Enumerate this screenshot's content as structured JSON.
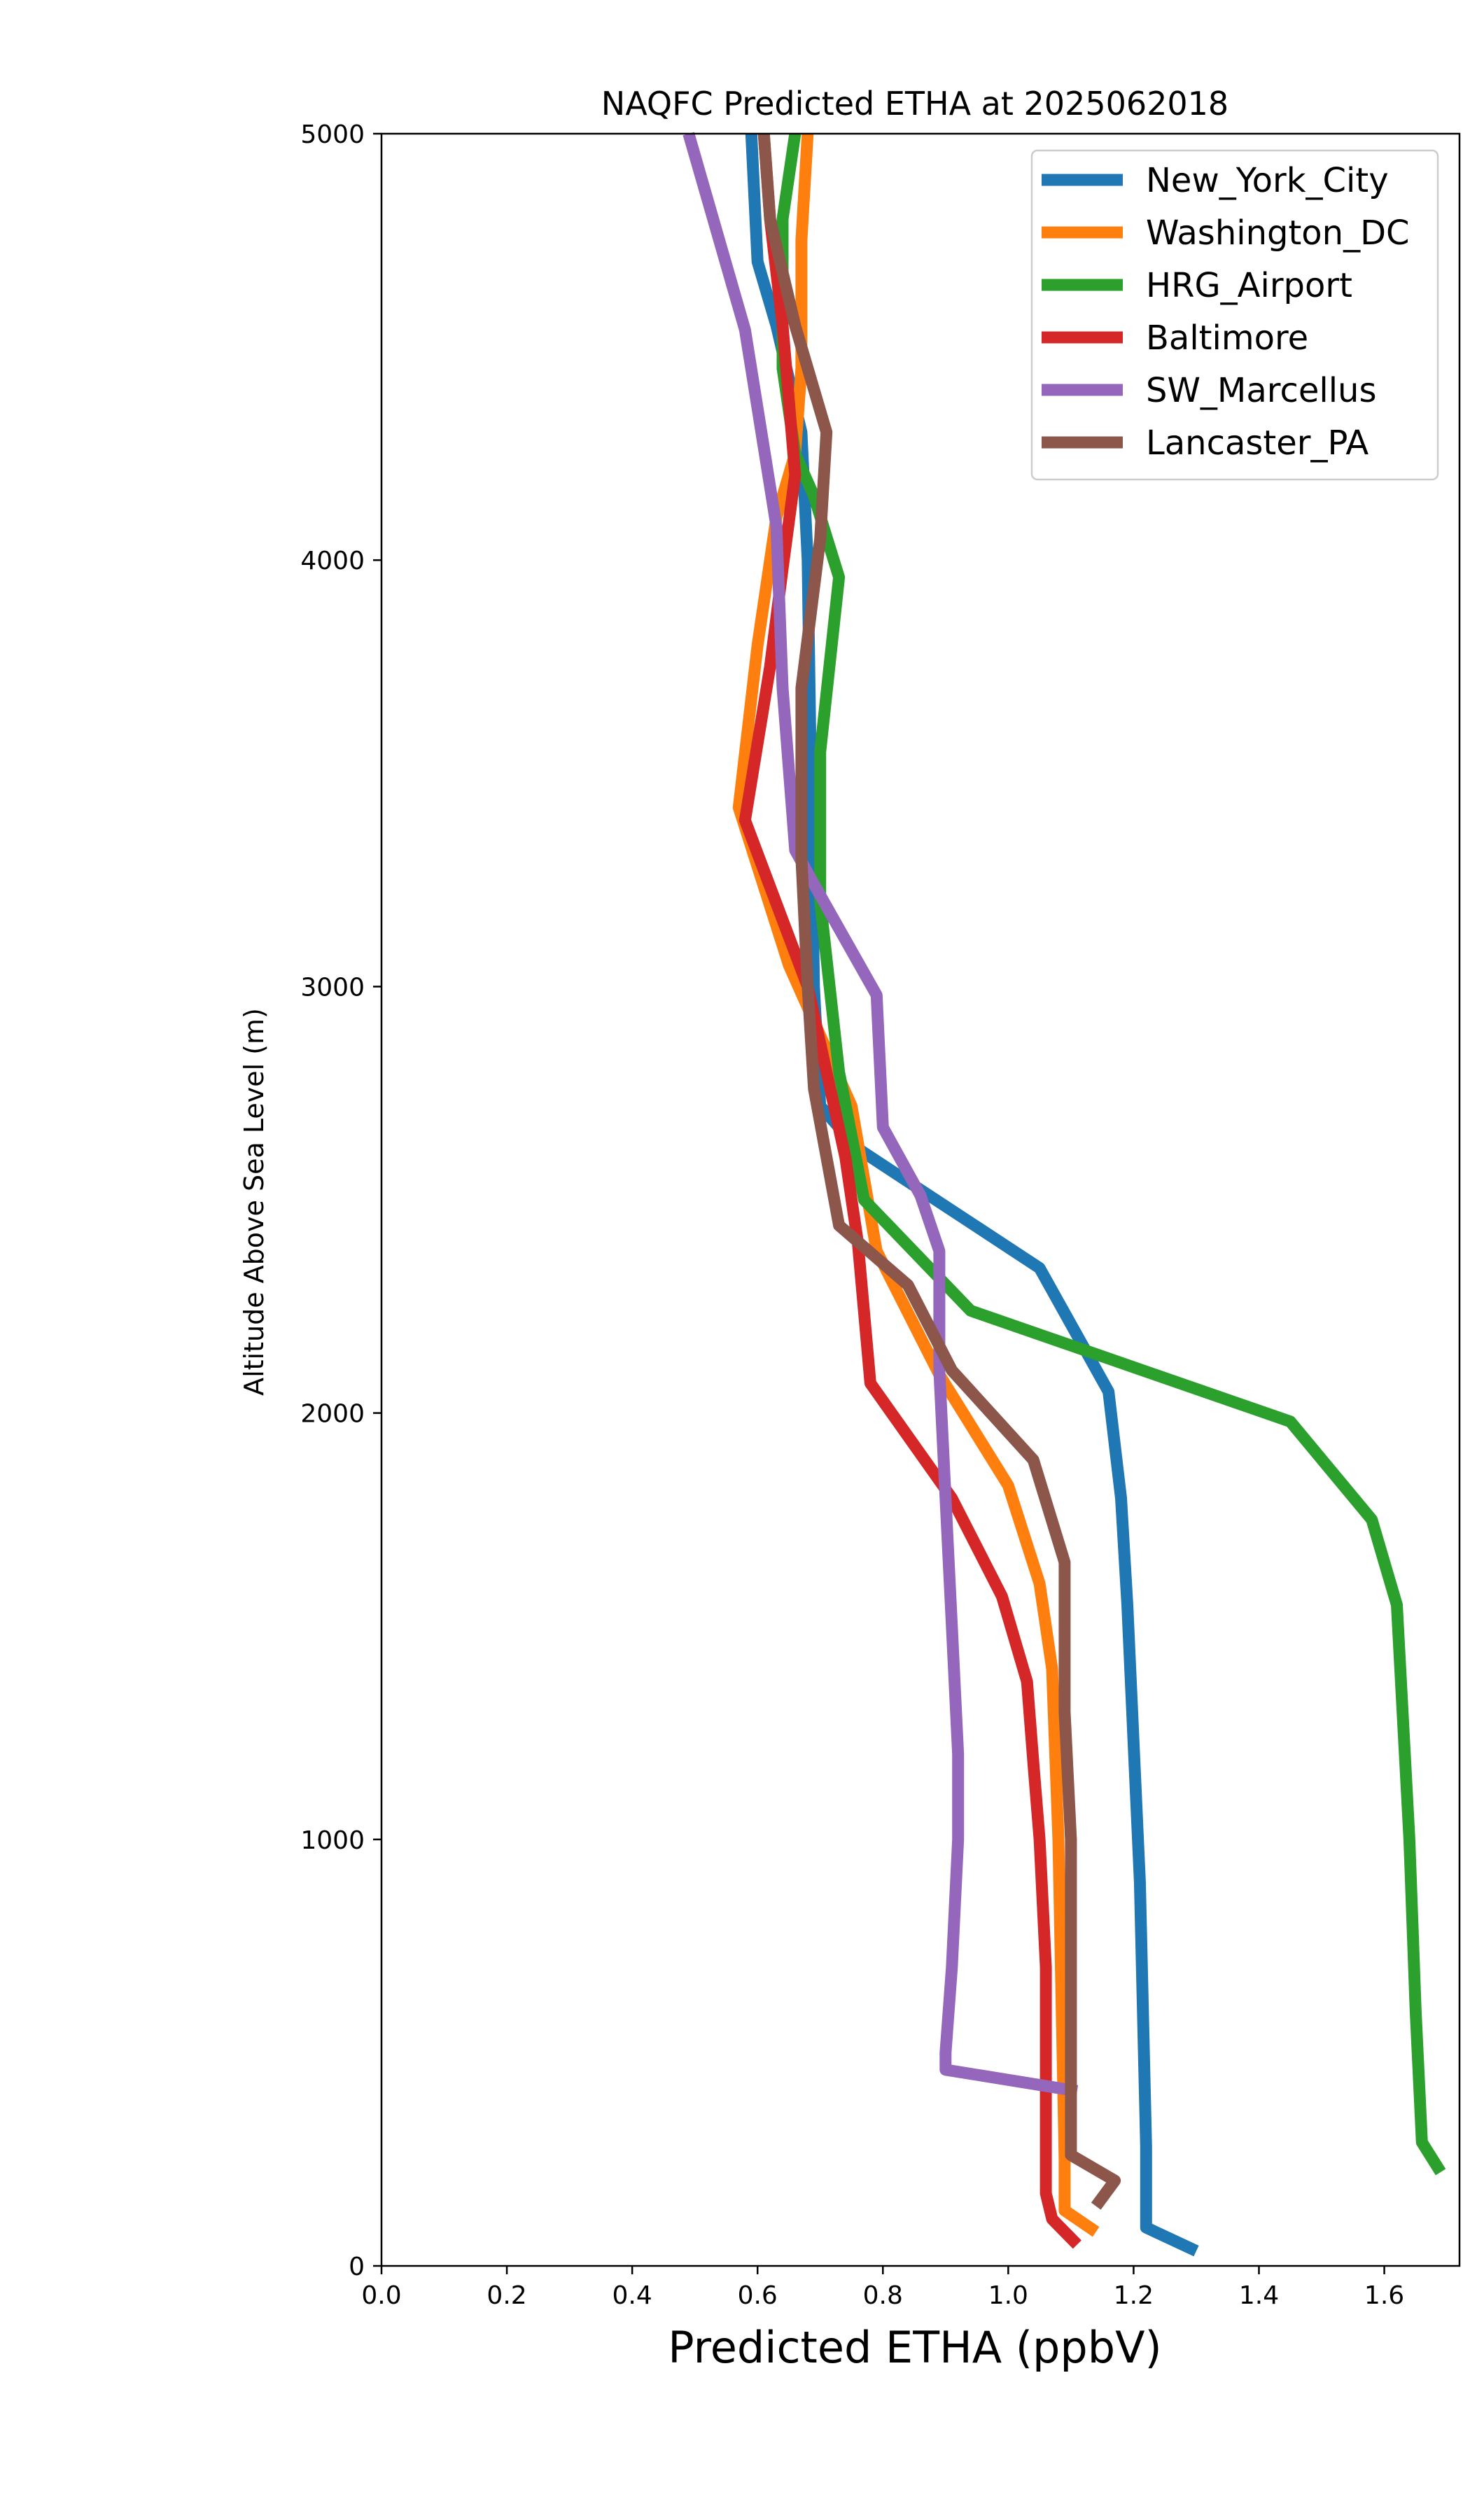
{
  "chart_data": {
    "type": "line",
    "title": "NAQFC Predicted ETHA at 2025062018",
    "xlabel": "Predicted ETHA (ppbV)",
    "ylabel": "Altitude Above Sea Level (m)",
    "xlim": [
      0.0,
      1.72
    ],
    "ylim": [
      0,
      5000
    ],
    "xticks": [
      "0.0",
      "0.2",
      "0.4",
      "0.6",
      "0.8",
      "1.0",
      "1.2",
      "1.4",
      "1.6"
    ],
    "yticks": [
      "0",
      "1000",
      "2000",
      "3000",
      "4000",
      "5000"
    ],
    "grid": false,
    "legend_position": "top-right",
    "series": [
      {
        "name": "New_York_City",
        "color": "#1f77b4",
        "points": [
          [
            1.3,
            35
          ],
          [
            1.22,
            90
          ],
          [
            1.22,
            280
          ],
          [
            1.21,
            900
          ],
          [
            1.19,
            1550
          ],
          [
            1.18,
            1800
          ],
          [
            1.16,
            2050
          ],
          [
            1.05,
            2340
          ],
          [
            0.76,
            2620
          ],
          [
            0.7,
            2720
          ],
          [
            0.69,
            3000
          ],
          [
            0.68,
            4000
          ],
          [
            0.67,
            4300
          ],
          [
            0.63,
            4550
          ],
          [
            0.6,
            4700
          ],
          [
            0.59,
            5000
          ]
        ]
      },
      {
        "name": "Washington_DC",
        "color": "#ff7f0e",
        "points": [
          [
            1.14,
            80
          ],
          [
            1.09,
            130
          ],
          [
            1.09,
            250
          ],
          [
            1.08,
            1000
          ],
          [
            1.07,
            1400
          ],
          [
            1.05,
            1600
          ],
          [
            1.0,
            1830
          ],
          [
            0.89,
            2090
          ],
          [
            0.79,
            2380
          ],
          [
            0.75,
            2720
          ],
          [
            0.65,
            3050
          ],
          [
            0.57,
            3420
          ],
          [
            0.6,
            3800
          ],
          [
            0.63,
            4100
          ],
          [
            0.66,
            4250
          ],
          [
            0.67,
            4450
          ],
          [
            0.67,
            4750
          ],
          [
            0.68,
            5000
          ]
        ]
      },
      {
        "name": "HRG_Airport",
        "color": "#2ca02c",
        "points": [
          [
            1.69,
            220
          ],
          [
            1.66,
            290
          ],
          [
            1.65,
            600
          ],
          [
            1.64,
            1000
          ],
          [
            1.62,
            1550
          ],
          [
            1.58,
            1750
          ],
          [
            1.45,
            1980
          ],
          [
            0.94,
            2240
          ],
          [
            0.77,
            2500
          ],
          [
            0.73,
            2800
          ],
          [
            0.7,
            3200
          ],
          [
            0.7,
            3550
          ],
          [
            0.73,
            3960
          ],
          [
            0.69,
            4150
          ],
          [
            0.66,
            4250
          ],
          [
            0.64,
            4450
          ],
          [
            0.64,
            4800
          ],
          [
            0.66,
            5000
          ]
        ]
      },
      {
        "name": "Baltimore",
        "color": "#d62728",
        "points": [
          [
            1.11,
            50
          ],
          [
            1.07,
            110
          ],
          [
            1.06,
            170
          ],
          [
            1.06,
            700
          ],
          [
            1.05,
            1000
          ],
          [
            1.04,
            1180
          ],
          [
            1.03,
            1370
          ],
          [
            0.99,
            1570
          ],
          [
            0.91,
            1800
          ],
          [
            0.78,
            2070
          ],
          [
            0.76,
            2400
          ],
          [
            0.74,
            2600
          ],
          [
            0.68,
            3000
          ],
          [
            0.58,
            3390
          ],
          [
            0.62,
            3750
          ],
          [
            0.64,
            3980
          ],
          [
            0.66,
            4200
          ],
          [
            0.64,
            4550
          ],
          [
            0.62,
            4800
          ],
          [
            0.61,
            5000
          ]
        ]
      },
      {
        "name": "SW_Marcellus",
        "color": "#9467bd",
        "points": [
          [
            1.11,
            410
          ],
          [
            0.9,
            460
          ],
          [
            0.9,
            500
          ],
          [
            0.91,
            700
          ],
          [
            0.92,
            1000
          ],
          [
            0.92,
            1200
          ],
          [
            0.91,
            1500
          ],
          [
            0.9,
            1800
          ],
          [
            0.89,
            2100
          ],
          [
            0.89,
            2380
          ],
          [
            0.86,
            2510
          ],
          [
            0.8,
            2670
          ],
          [
            0.79,
            2980
          ],
          [
            0.69,
            3240
          ],
          [
            0.66,
            3320
          ],
          [
            0.64,
            3700
          ],
          [
            0.63,
            4080
          ],
          [
            0.58,
            4540
          ],
          [
            0.49,
            5000
          ]
        ]
      },
      {
        "name": "Lancaster_PA",
        "color": "#8c564b",
        "points": [
          [
            1.14,
            140
          ],
          [
            1.17,
            200
          ],
          [
            1.1,
            260
          ],
          [
            1.1,
            1000
          ],
          [
            1.09,
            1300
          ],
          [
            1.09,
            1650
          ],
          [
            1.04,
            1890
          ],
          [
            0.91,
            2100
          ],
          [
            0.84,
            2300
          ],
          [
            0.73,
            2440
          ],
          [
            0.69,
            2760
          ],
          [
            0.68,
            3000
          ],
          [
            0.67,
            3300
          ],
          [
            0.67,
            3700
          ],
          [
            0.7,
            4050
          ],
          [
            0.71,
            4300
          ],
          [
            0.66,
            4550
          ],
          [
            0.62,
            4800
          ],
          [
            0.61,
            5000
          ]
        ]
      }
    ]
  }
}
